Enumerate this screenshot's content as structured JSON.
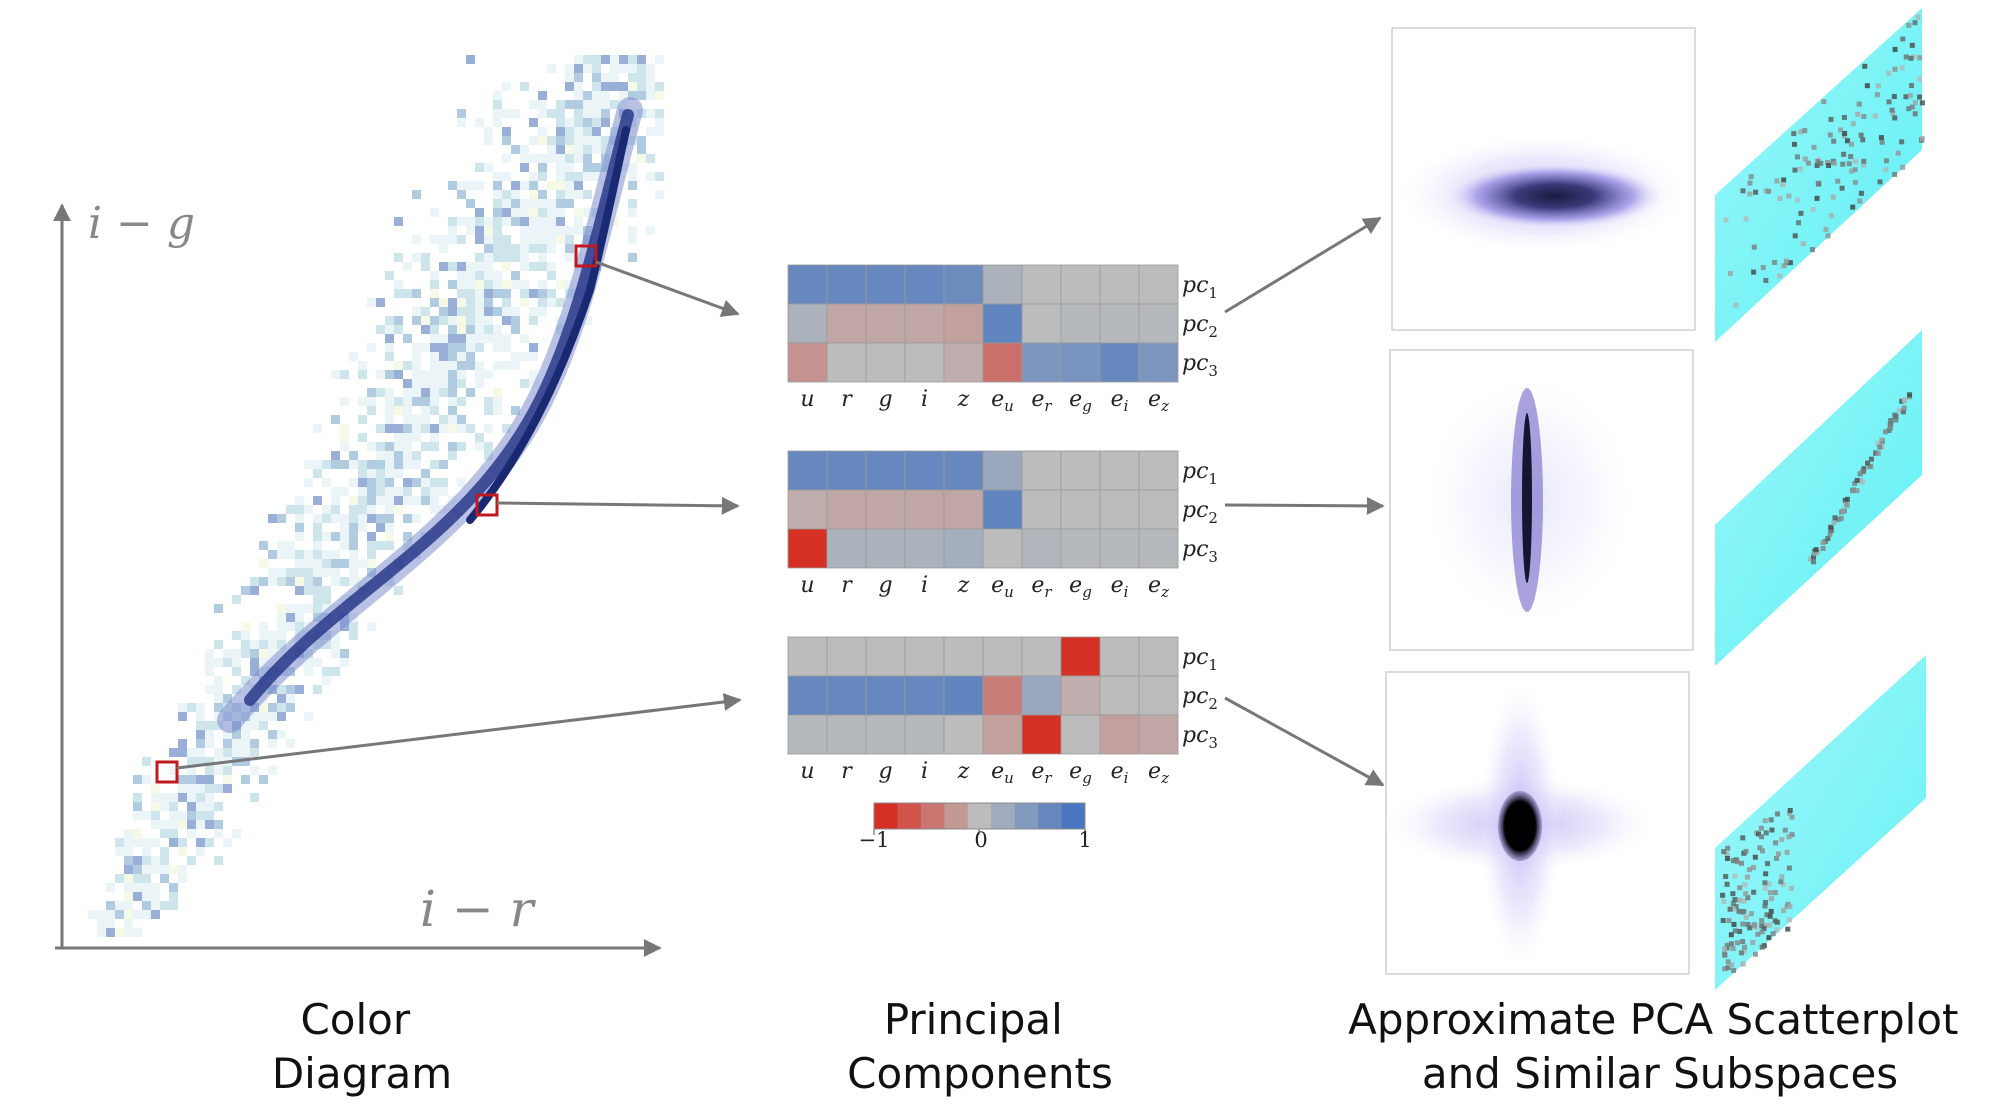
{
  "color_diagram": {
    "y_axis_label": "i − g",
    "x_axis_label": "i − r",
    "caption_lines": [
      "Color",
      "Diagram"
    ]
  },
  "principal_components": {
    "caption_lines": [
      "Principal",
      "Components"
    ],
    "columns": [
      "u",
      "r",
      "g",
      "i",
      "z",
      "eu",
      "er",
      "eg",
      "ei",
      "ez"
    ],
    "rows": [
      "pc1",
      "pc2",
      "pc3"
    ],
    "matrices": [
      [
        [
          0.75,
          0.75,
          0.75,
          0.75,
          0.7,
          0.15,
          0.0,
          0.0,
          0.0,
          0.0
        ],
        [
          0.15,
          -0.15,
          -0.15,
          -0.15,
          -0.2,
          0.8,
          0.0,
          0.05,
          0.05,
          0.05
        ],
        [
          -0.3,
          0.0,
          0.0,
          0.0,
          -0.1,
          -0.55,
          0.55,
          0.6,
          0.75,
          0.55
        ]
      ],
      [
        [
          0.75,
          0.75,
          0.75,
          0.75,
          0.75,
          0.3,
          0.0,
          0.0,
          0.0,
          0.0
        ],
        [
          -0.1,
          -0.15,
          -0.15,
          -0.15,
          -0.15,
          0.8,
          0.0,
          0.0,
          0.0,
          0.0
        ],
        [
          -1.0,
          0.15,
          0.15,
          0.15,
          0.2,
          0.0,
          0.1,
          0.05,
          0.05,
          0.05
        ]
      ],
      [
        [
          0.0,
          0.0,
          0.0,
          0.0,
          0.0,
          0.0,
          0.0,
          -1.0,
          0.0,
          0.0
        ],
        [
          0.75,
          0.75,
          0.75,
          0.75,
          0.8,
          -0.45,
          0.3,
          -0.1,
          0.0,
          0.0
        ],
        [
          0.05,
          0.05,
          0.05,
          0.05,
          0.0,
          -0.2,
          -1.0,
          0.0,
          -0.2,
          -0.15
        ]
      ]
    ],
    "colorbar_ticks": [
      "−1",
      "0",
      "1"
    ],
    "colorbar_values": [
      -1,
      -0.75,
      -0.5,
      -0.25,
      0,
      0.25,
      0.5,
      0.75,
      1
    ]
  },
  "subspaces": {
    "caption_lines": [
      "Approximate PCA Scatterplot",
      "and Similar  Subspaces"
    ]
  },
  "colors": {
    "negative": "#d63025",
    "neutral": "#bcbcbc",
    "positive": "#4a77bf",
    "highlight_box": "#c0181e",
    "arrow": "#777777",
    "density_dark": "#1a2a72",
    "cyan": "#5ff0f5"
  }
}
